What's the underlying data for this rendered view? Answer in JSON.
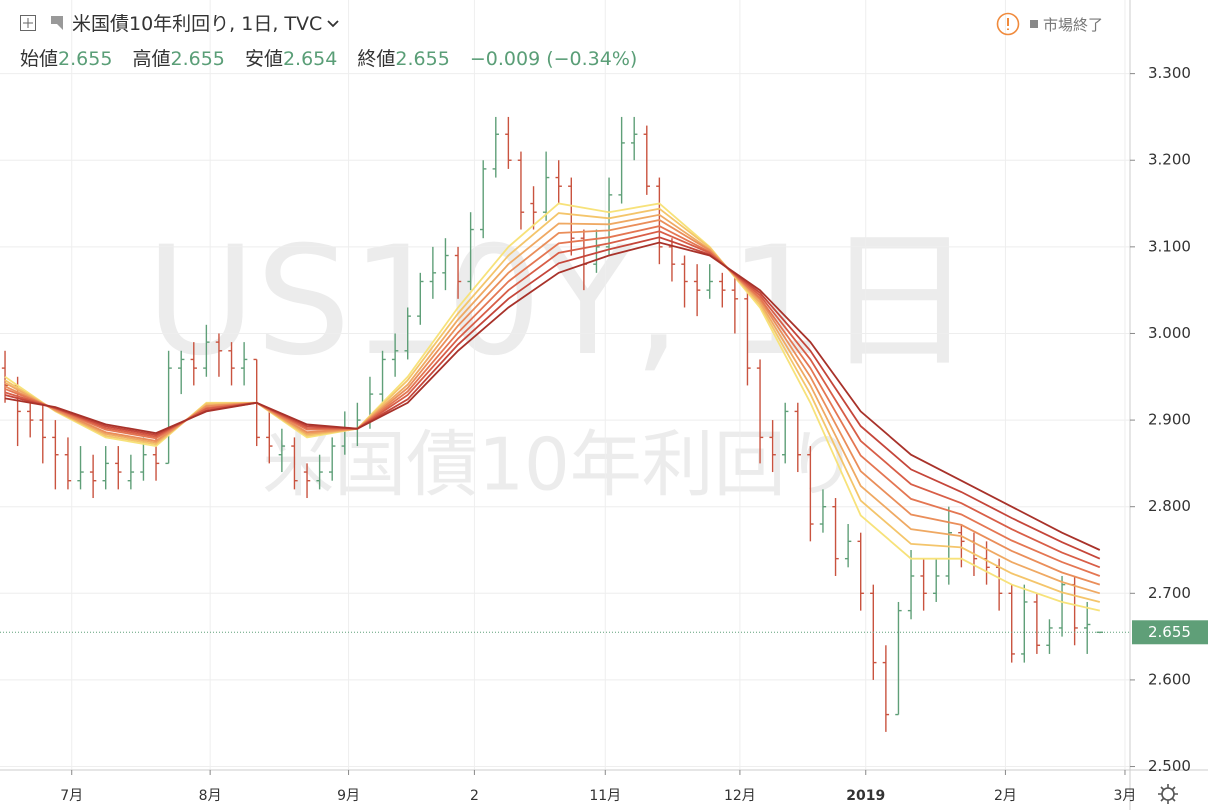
{
  "chart_data": {
    "type": "ohlc",
    "title": "米国債10年利回り, 1日, TVC",
    "labels": {
      "open": "始値",
      "high": "高値",
      "low": "安値",
      "close": "終値"
    },
    "change": "−0.009",
    "change_pct": "(−0.34%)",
    "status": "市場終了",
    "watermark": [
      "US10Y, 1日",
      "米国債10年利回り"
    ],
    "up_color": "#5f9f78",
    "down_color": "#c9533f",
    "ohlc": [
      [
        2.96,
        2.98,
        2.92,
        2.94
      ],
      [
        2.94,
        2.95,
        2.87,
        2.91
      ],
      [
        2.91,
        2.93,
        2.88,
        2.9
      ],
      [
        2.9,
        2.92,
        2.85,
        2.88
      ],
      [
        2.88,
        2.9,
        2.82,
        2.86
      ],
      [
        2.86,
        2.88,
        2.82,
        2.83
      ],
      [
        2.83,
        2.87,
        2.82,
        2.84
      ],
      [
        2.84,
        2.86,
        2.81,
        2.83
      ],
      [
        2.83,
        2.87,
        2.82,
        2.85
      ],
      [
        2.85,
        2.87,
        2.82,
        2.84
      ],
      [
        2.83,
        2.86,
        2.82,
        2.84
      ],
      [
        2.84,
        2.88,
        2.83,
        2.86
      ],
      [
        2.86,
        2.88,
        2.83,
        2.85
      ],
      [
        2.85,
        2.98,
        2.85,
        2.96
      ],
      [
        2.96,
        2.98,
        2.93,
        2.97
      ],
      [
        2.97,
        2.99,
        2.94,
        2.96
      ],
      [
        2.96,
        3.01,
        2.95,
        2.99
      ],
      [
        2.99,
        3.0,
        2.95,
        2.98
      ],
      [
        2.98,
        2.99,
        2.94,
        2.96
      ],
      [
        2.96,
        2.99,
        2.94,
        2.97
      ],
      [
        2.97,
        2.97,
        2.87,
        2.88
      ],
      [
        2.88,
        2.91,
        2.85,
        2.87
      ],
      [
        2.86,
        2.89,
        2.84,
        2.87
      ],
      [
        2.87,
        2.88,
        2.82,
        2.83
      ],
      [
        2.84,
        2.85,
        2.81,
        2.83
      ],
      [
        2.83,
        2.86,
        2.82,
        2.84
      ],
      [
        2.84,
        2.88,
        2.83,
        2.87
      ],
      [
        2.87,
        2.91,
        2.86,
        2.89
      ],
      [
        2.89,
        2.92,
        2.87,
        2.9
      ],
      [
        2.9,
        2.95,
        2.89,
        2.93
      ],
      [
        2.93,
        2.98,
        2.92,
        2.97
      ],
      [
        2.97,
        3.0,
        2.95,
        2.98
      ],
      [
        2.98,
        3.03,
        2.97,
        3.02
      ],
      [
        3.02,
        3.07,
        3.01,
        3.06
      ],
      [
        3.06,
        3.1,
        3.04,
        3.07
      ],
      [
        3.07,
        3.11,
        3.05,
        3.09
      ],
      [
        3.09,
        3.1,
        3.04,
        3.06
      ],
      [
        3.06,
        3.14,
        3.05,
        3.12
      ],
      [
        3.12,
        3.2,
        3.11,
        3.19
      ],
      [
        3.19,
        3.25,
        3.18,
        3.23
      ],
      [
        3.23,
        3.25,
        3.19,
        3.2
      ],
      [
        3.2,
        3.21,
        3.12,
        3.14
      ],
      [
        3.15,
        3.17,
        3.12,
        3.14
      ],
      [
        3.14,
        3.21,
        3.13,
        3.18
      ],
      [
        3.18,
        3.2,
        3.15,
        3.17
      ],
      [
        3.17,
        3.18,
        3.09,
        3.11
      ],
      [
        3.11,
        3.12,
        3.05,
        3.08
      ],
      [
        3.08,
        3.12,
        3.07,
        3.1
      ],
      [
        3.1,
        3.18,
        3.09,
        3.16
      ],
      [
        3.16,
        3.25,
        3.15,
        3.22
      ],
      [
        3.22,
        3.25,
        3.2,
        3.23
      ],
      [
        3.23,
        3.24,
        3.16,
        3.17
      ],
      [
        3.17,
        3.18,
        3.08,
        3.1
      ],
      [
        3.1,
        3.11,
        3.06,
        3.08
      ],
      [
        3.08,
        3.09,
        3.03,
        3.06
      ],
      [
        3.06,
        3.08,
        3.02,
        3.05
      ],
      [
        3.05,
        3.08,
        3.04,
        3.06
      ],
      [
        3.06,
        3.07,
        3.03,
        3.05
      ],
      [
        3.05,
        3.07,
        3.0,
        3.04
      ],
      [
        3.04,
        3.05,
        2.94,
        2.96
      ],
      [
        2.96,
        2.97,
        2.85,
        2.88
      ],
      [
        2.88,
        2.9,
        2.84,
        2.86
      ],
      [
        2.86,
        2.92,
        2.85,
        2.91
      ],
      [
        2.91,
        2.92,
        2.84,
        2.86
      ],
      [
        2.86,
        2.87,
        2.76,
        2.78
      ],
      [
        2.78,
        2.82,
        2.77,
        2.8
      ],
      [
        2.8,
        2.81,
        2.72,
        2.74
      ],
      [
        2.74,
        2.78,
        2.73,
        2.76
      ],
      [
        2.76,
        2.77,
        2.68,
        2.7
      ],
      [
        2.7,
        2.71,
        2.6,
        2.62
      ],
      [
        2.62,
        2.64,
        2.54,
        2.56
      ],
      [
        2.56,
        2.69,
        2.56,
        2.68
      ],
      [
        2.68,
        2.75,
        2.67,
        2.72
      ],
      [
        2.72,
        2.74,
        2.68,
        2.7
      ],
      [
        2.7,
        2.74,
        2.69,
        2.72
      ],
      [
        2.72,
        2.8,
        2.71,
        2.77
      ],
      [
        2.77,
        2.78,
        2.73,
        2.76
      ],
      [
        2.76,
        2.77,
        2.72,
        2.74
      ],
      [
        2.74,
        2.76,
        2.71,
        2.73
      ],
      [
        2.73,
        2.74,
        2.68,
        2.7
      ],
      [
        2.7,
        2.71,
        2.62,
        2.63
      ],
      [
        2.63,
        2.71,
        2.62,
        2.69
      ],
      [
        2.69,
        2.7,
        2.63,
        2.64
      ],
      [
        2.64,
        2.67,
        2.63,
        2.66
      ],
      [
        2.66,
        2.72,
        2.65,
        2.71
      ],
      [
        2.71,
        2.72,
        2.64,
        2.66
      ],
      [
        2.66,
        2.69,
        2.63,
        2.664
      ],
      [
        2.655,
        2.655,
        2.654,
        2.655
      ]
    ],
    "ma_x": [
      0,
      4,
      8,
      12,
      16,
      20,
      24,
      28,
      32,
      36,
      40,
      44,
      48,
      52,
      56,
      60,
      64,
      68,
      72,
      76,
      80,
      84,
      87
    ],
    "ma": [
      {
        "color": "#f7e27a",
        "values": [
          2.95,
          2.91,
          2.88,
          2.87,
          2.92,
          2.92,
          2.88,
          2.89,
          2.95,
          3.03,
          3.1,
          3.15,
          3.14,
          3.15,
          3.1,
          3.03,
          2.92,
          2.79,
          2.74,
          2.74,
          2.71,
          2.69,
          2.68
        ]
      },
      {
        "color": "#f4c56b",
        "values": [
          2.946,
          2.911,
          2.882,
          2.872,
          2.919,
          2.92,
          2.882,
          2.89,
          2.946,
          3.023,
          3.09,
          3.139,
          3.133,
          3.144,
          3.099,
          3.033,
          2.93,
          2.807,
          2.757,
          2.753,
          2.723,
          2.701,
          2.69
        ]
      },
      {
        "color": "#efa963",
        "values": [
          2.943,
          2.911,
          2.884,
          2.874,
          2.917,
          2.92,
          2.884,
          2.89,
          2.941,
          3.016,
          3.08,
          3.127,
          3.126,
          3.137,
          3.097,
          3.036,
          2.94,
          2.824,
          2.774,
          2.766,
          2.736,
          2.713,
          2.7
        ]
      },
      {
        "color": "#ea8e5a",
        "values": [
          2.939,
          2.912,
          2.886,
          2.876,
          2.916,
          2.92,
          2.886,
          2.89,
          2.937,
          3.009,
          3.07,
          3.116,
          3.119,
          3.131,
          3.096,
          3.039,
          2.95,
          2.841,
          2.791,
          2.779,
          2.749,
          2.724,
          2.71
        ]
      },
      {
        "color": "#e47652",
        "values": [
          2.936,
          2.913,
          2.889,
          2.879,
          2.914,
          2.92,
          2.889,
          2.89,
          2.933,
          3.001,
          3.06,
          3.104,
          3.111,
          3.124,
          3.094,
          3.041,
          2.96,
          2.859,
          2.809,
          2.791,
          2.761,
          2.736,
          2.72
        ]
      },
      {
        "color": "#d85e47",
        "values": [
          2.932,
          2.914,
          2.891,
          2.881,
          2.913,
          2.92,
          2.891,
          2.89,
          2.929,
          2.994,
          3.05,
          3.093,
          3.104,
          3.118,
          3.093,
          3.044,
          2.97,
          2.876,
          2.826,
          2.804,
          2.774,
          2.747,
          2.73
        ]
      },
      {
        "color": "#c5463a",
        "values": [
          2.929,
          2.914,
          2.893,
          2.883,
          2.911,
          2.92,
          2.893,
          2.89,
          2.924,
          2.987,
          3.04,
          3.081,
          3.097,
          3.111,
          3.091,
          3.047,
          2.98,
          2.893,
          2.843,
          2.817,
          2.787,
          2.759,
          2.74
        ]
      },
      {
        "color": "#a8322a",
        "values": [
          2.925,
          2.915,
          2.895,
          2.885,
          2.91,
          2.92,
          2.895,
          2.89,
          2.92,
          2.98,
          3.03,
          3.07,
          3.09,
          3.105,
          3.09,
          3.05,
          2.99,
          2.91,
          2.86,
          2.83,
          2.8,
          2.77,
          2.75
        ]
      }
    ],
    "xlim": [
      -0.4,
      89.4
    ],
    "ylim": [
      2.496,
      3.385
    ],
    "xticks": [
      {
        "value": 5.3,
        "label": "7月"
      },
      {
        "value": 16.3,
        "label": "8月"
      },
      {
        "value": 27.3,
        "label": "9月"
      },
      {
        "value": 37.3,
        "label": "2"
      },
      {
        "value": 47.7,
        "label": "11月"
      },
      {
        "value": 58.4,
        "label": "12月"
      },
      {
        "value": 68.4,
        "label": "2019"
      },
      {
        "value": 79.5,
        "label": "2月"
      },
      {
        "value": 89,
        "label": "3月"
      }
    ],
    "yticks": [
      {
        "value": 2.5,
        "label": "2.500"
      },
      {
        "value": 2.6,
        "label": "2.600"
      },
      {
        "value": 2.7,
        "label": "2.700"
      },
      {
        "value": 2.8,
        "label": "2.800"
      },
      {
        "value": 2.9,
        "label": "2.900"
      },
      {
        "value": 3.0,
        "label": "3.000"
      },
      {
        "value": 3.1,
        "label": "3.100"
      },
      {
        "value": 3.2,
        "label": "3.200"
      },
      {
        "value": 3.3,
        "label": "3.300"
      }
    ],
    "grid": true
  }
}
